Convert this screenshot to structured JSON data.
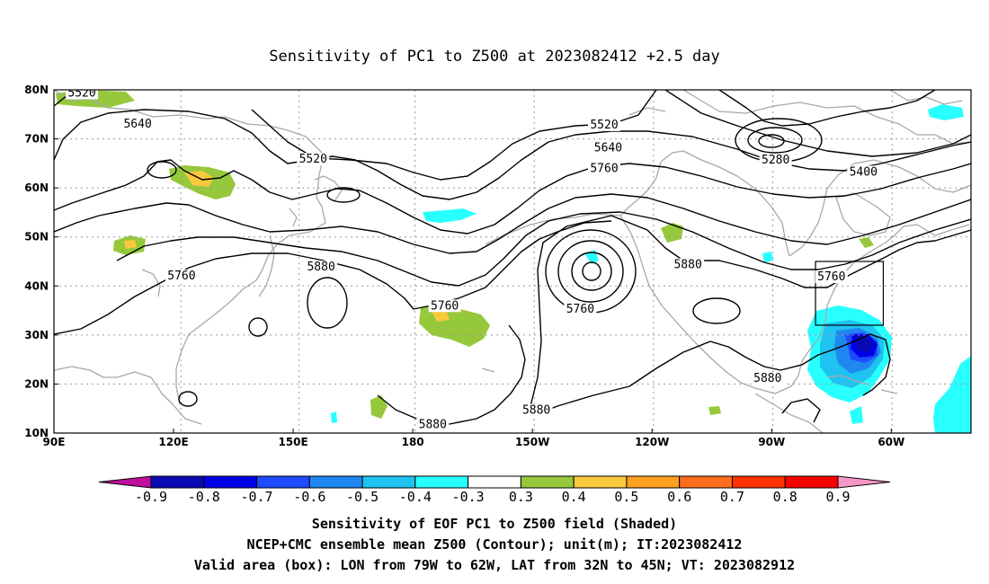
{
  "map": {
    "title": "Sensitivity of PC1 to Z500 at 2023082412 +2.5 day",
    "lon_range": [
      "90E",
      "40W"
    ],
    "lat_range": [
      "10N",
      "80N"
    ],
    "lat_ticks": [
      "80N",
      "70N",
      "60N",
      "50N",
      "40N",
      "30N",
      "20N",
      "10N"
    ],
    "lon_ticks": [
      "90E",
      "120E",
      "150E",
      "180",
      "150W",
      "120W",
      "90W",
      "60W"
    ],
    "contour_labels": [
      {
        "text": "5520",
        "lon": 97,
        "lat": 79
      },
      {
        "text": "5640",
        "lon": 111,
        "lat": 72.7
      },
      {
        "text": "5520",
        "lon": 155,
        "lat": 65.5
      },
      {
        "text": "5520",
        "lon": -132,
        "lat": 72.5
      },
      {
        "text": "5640",
        "lon": -131,
        "lat": 67.8
      },
      {
        "text": "5760",
        "lon": -132,
        "lat": 63.6
      },
      {
        "text": "5280",
        "lon": -89,
        "lat": 65.3
      },
      {
        "text": "5400",
        "lon": -67,
        "lat": 62.9
      },
      {
        "text": "5760",
        "lon": 122,
        "lat": 41.7
      },
      {
        "text": "5880",
        "lon": 157,
        "lat": 43.5
      },
      {
        "text": "5760",
        "lon": -172,
        "lat": 35.6
      },
      {
        "text": "5760",
        "lon": -138,
        "lat": 34.9
      },
      {
        "text": "5880",
        "lon": -111,
        "lat": 44
      },
      {
        "text": "5760",
        "lon": -75,
        "lat": 41.5
      },
      {
        "text": "5880",
        "lon": -91,
        "lat": 20.8
      },
      {
        "text": "5880",
        "lon": -175,
        "lat": 11.4
      },
      {
        "text": "5880",
        "lon": -149,
        "lat": 14.3
      }
    ],
    "valid_box": {
      "lon_from": -79,
      "lon_to": -62,
      "lat_from": 32,
      "lat_to": 45
    }
  },
  "colorbar": {
    "labels": [
      "-0.9",
      "-0.8",
      "-0.7",
      "-0.6",
      "-0.5",
      "-0.4",
      "-0.3",
      "0.3",
      "0.4",
      "0.5",
      "0.6",
      "0.7",
      "0.8",
      "0.9"
    ],
    "colors": [
      "#be0f9e",
      "#0a0ab4",
      "#0000e6",
      "#1e4bff",
      "#1e87f0",
      "#1ec3f0",
      "#28ffff",
      "#ffffff",
      "#96c83c",
      "#fac83c",
      "#ffa01e",
      "#ff6e1e",
      "#ff3200",
      "#fa0000",
      "#f596c8"
    ]
  },
  "footer": {
    "line1": "Sensitivity of EOF PC1 to Z500 field (Shaded)",
    "line2": "NCEP+CMC ensemble mean Z500 (Contour); unit(m); IT:2023082412",
    "line3": "Valid area (box): LON from 79W to 62W, LAT from 32N to 45N; VT: 2023082912"
  }
}
